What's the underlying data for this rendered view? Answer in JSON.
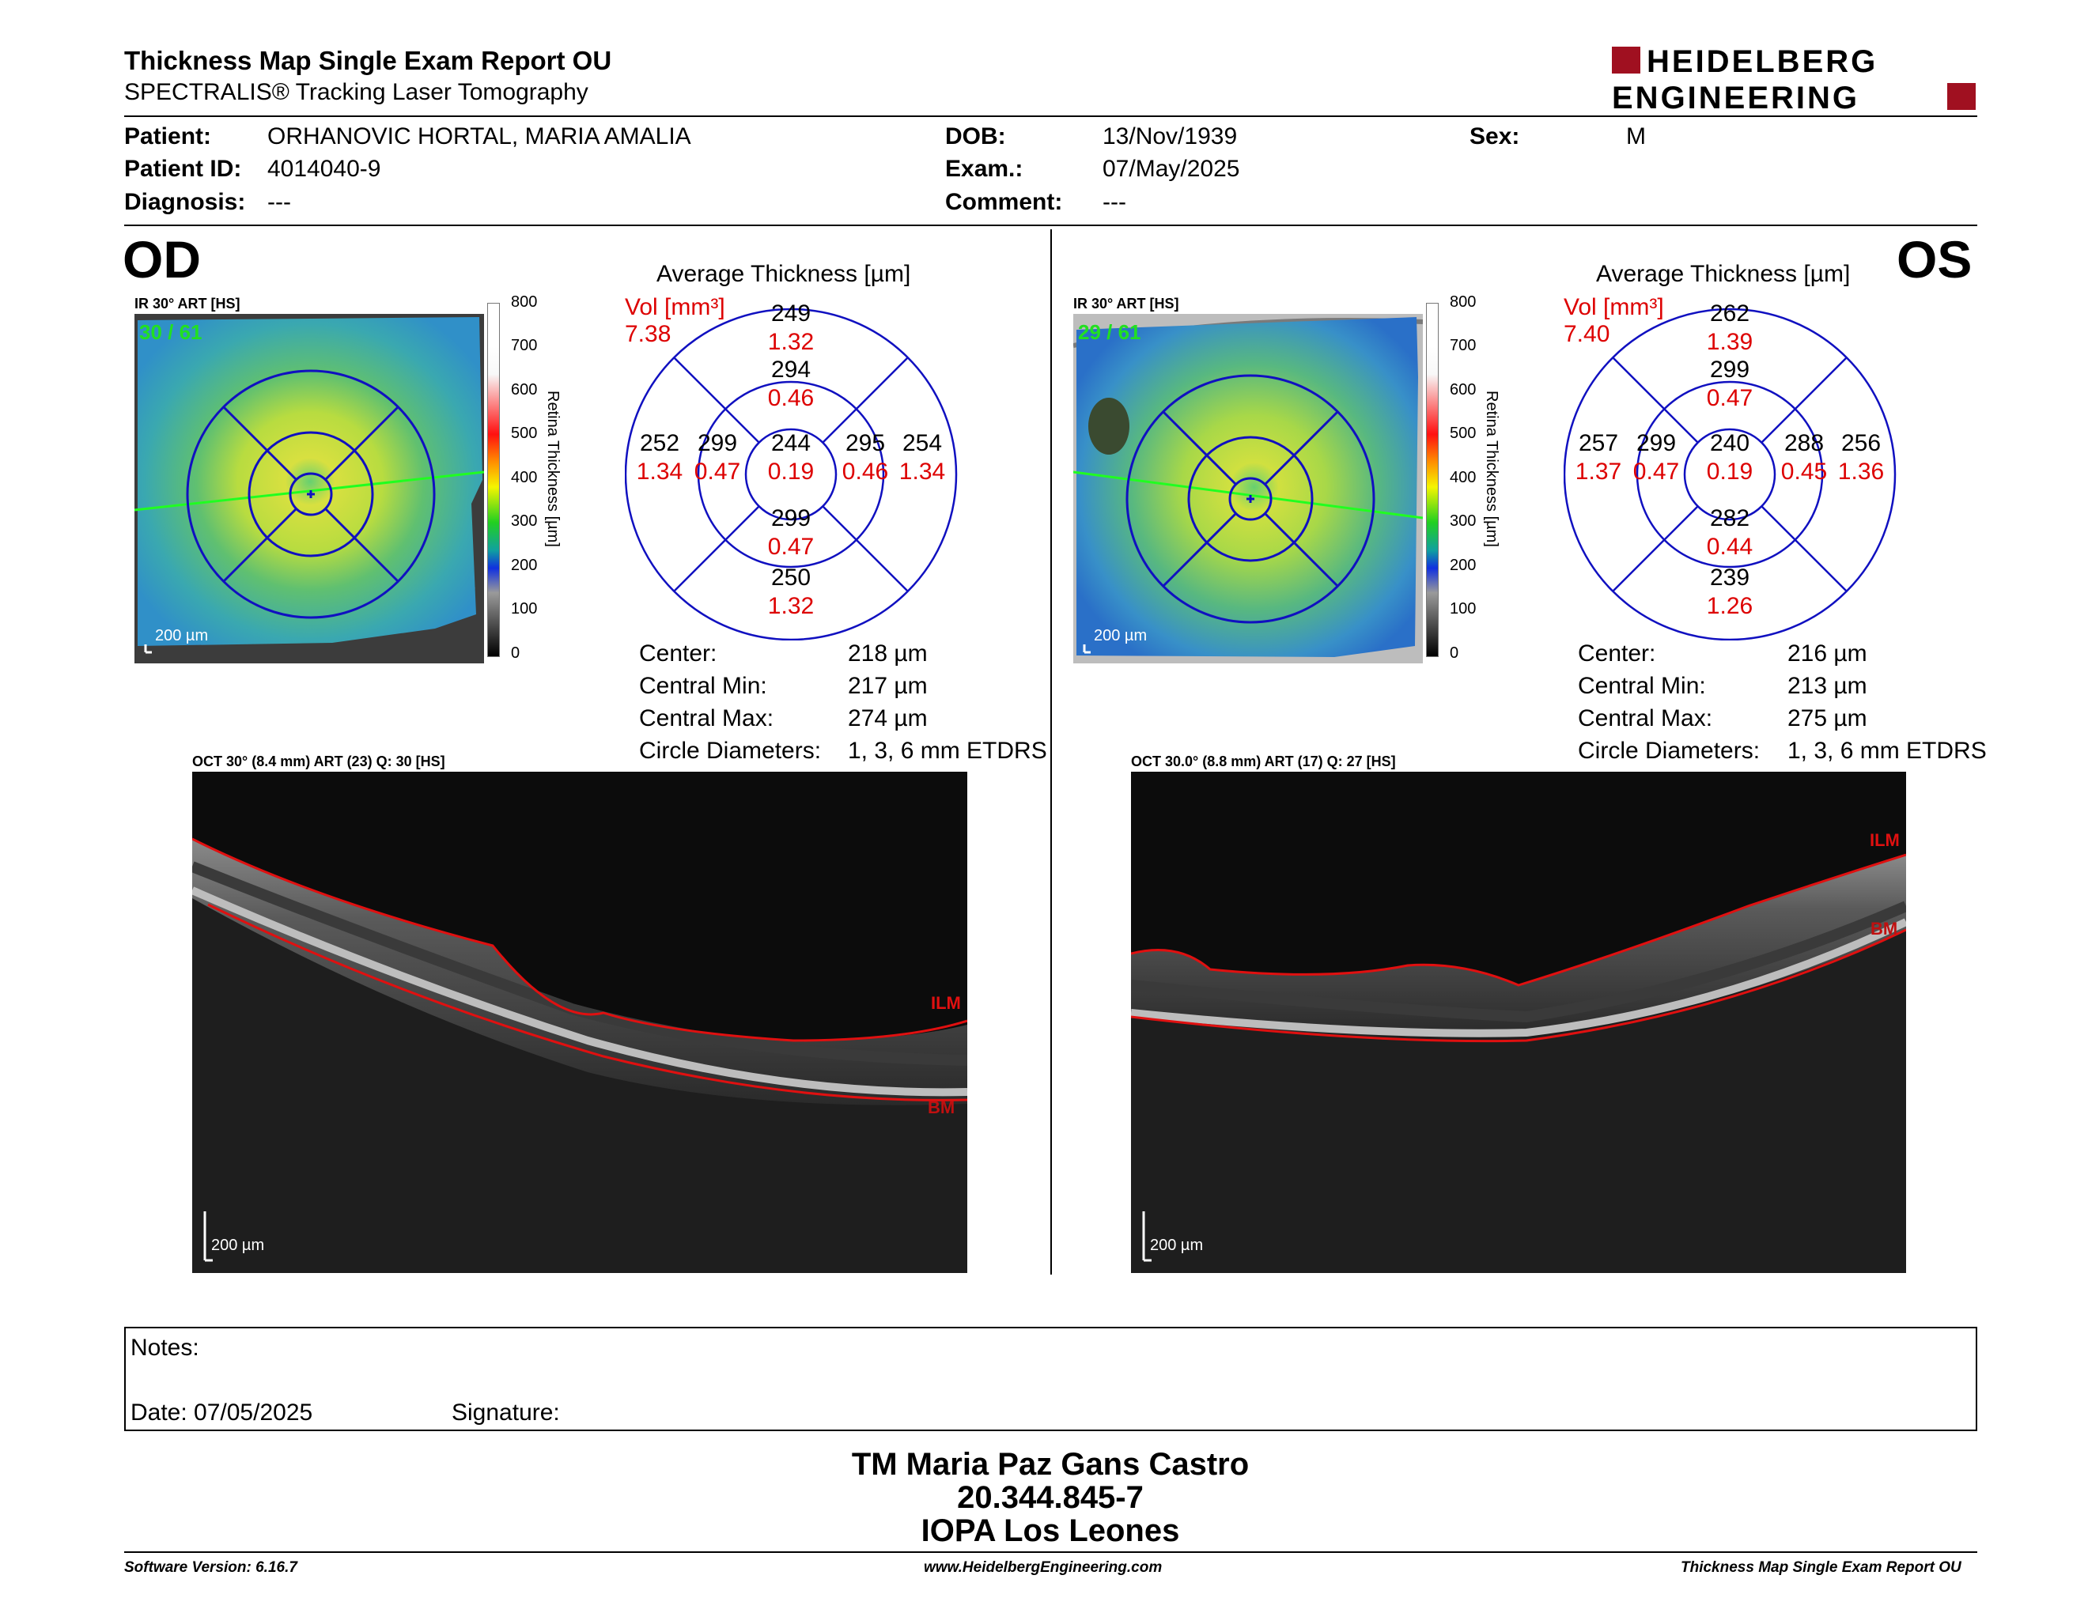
{
  "header": {
    "title": "Thickness Map Single Exam Report OU",
    "subtitle": "SPECTRALIS® Tracking Laser Tomography",
    "logo_line1": "HEIDELBERG",
    "logo_line2": "ENGINEERING"
  },
  "patient": {
    "patient_label": "Patient:",
    "patient_value": "ORHANOVIC HORTAL, MARIA AMALIA",
    "id_label": "Patient ID:",
    "id_value": "4014040-9",
    "diagnosis_label": "Diagnosis:",
    "diagnosis_value": "---",
    "dob_label": "DOB:",
    "dob_value": "13/Nov/1939",
    "exam_label": "Exam.:",
    "exam_value": "07/May/2025",
    "comment_label": "Comment:",
    "comment_value": "---",
    "sex_label": "Sex:",
    "sex_value": "M"
  },
  "colorbar": {
    "ticks": [
      "800",
      "700",
      "600",
      "500",
      "400",
      "300",
      "200",
      "100",
      "0"
    ],
    "label": "Retina  Thickness [µm]"
  },
  "od": {
    "eye": "OD",
    "ir_title": "IR 30° ART [HS]",
    "ir_count": "30 / 61",
    "ir_scale": "200 µm",
    "avg_title": "Average Thickness [µm]",
    "vol_label": "Vol [mm³]",
    "vol_total": "7.38",
    "etdrs": {
      "center": {
        "t": "244",
        "v": "0.19"
      },
      "inner_top": {
        "t": "294",
        "v": "0.46"
      },
      "inner_bottom": {
        "t": "299",
        "v": "0.47"
      },
      "inner_left": {
        "t": "299",
        "v": "0.47"
      },
      "inner_right": {
        "t": "295",
        "v": "0.46"
      },
      "outer_top": {
        "t": "249",
        "v": "1.32"
      },
      "outer_bottom": {
        "t": "250",
        "v": "1.32"
      },
      "outer_left": {
        "t": "252",
        "v": "1.34"
      },
      "outer_right": {
        "t": "254",
        "v": "1.34"
      }
    },
    "stats": {
      "center_label": "Center:",
      "center_value": "218 µm",
      "min_label": "Central Min:",
      "min_value": "217 µm",
      "max_label": "Central Max:",
      "max_value": "274 µm",
      "circ_label": "Circle Diameters:",
      "circ_value": "1, 3, 6 mm ETDRS"
    },
    "oct_title": "OCT 30° (8.4 mm) ART (23) Q: 30 [HS]",
    "oct_ilm": "ILM",
    "oct_bm": "BM",
    "oct_scale": "200 µm"
  },
  "os": {
    "eye": "OS",
    "ir_title": "IR 30° ART [HS]",
    "ir_count": "29 / 61",
    "ir_scale": "200 µm",
    "avg_title": "Average Thickness [µm]",
    "vol_label": "Vol [mm³]",
    "vol_total": "7.40",
    "etdrs": {
      "center": {
        "t": "240",
        "v": "0.19"
      },
      "inner_top": {
        "t": "299",
        "v": "0.47"
      },
      "inner_bottom": {
        "t": "282",
        "v": "0.44"
      },
      "inner_left": {
        "t": "299",
        "v": "0.47"
      },
      "inner_right": {
        "t": "288",
        "v": "0.45"
      },
      "outer_top": {
        "t": "262",
        "v": "1.39"
      },
      "outer_bottom": {
        "t": "239",
        "v": "1.26"
      },
      "outer_left": {
        "t": "257",
        "v": "1.37"
      },
      "outer_right": {
        "t": "256",
        "v": "1.36"
      }
    },
    "stats": {
      "center_label": "Center:",
      "center_value": "216 µm",
      "min_label": "Central Min:",
      "min_value": "213 µm",
      "max_label": "Central Max:",
      "max_value": "275 µm",
      "circ_label": "Circle Diameters:",
      "circ_value": "1, 3, 6 mm ETDRS"
    },
    "oct_title": "OCT 30.0° (8.8 mm) ART (17) Q: 27 [HS]",
    "oct_ilm": "ILM",
    "oct_bm": "BM",
    "oct_scale": "200 µm"
  },
  "notes": {
    "notes_label": "Notes:",
    "date_label": "Date: 07/05/2025",
    "signature_label": "Signature:"
  },
  "signature_block": {
    "line1": "TM Maria Paz Gans Castro",
    "line2": "20.344.845-7",
    "line3": "IOPA Los Leones"
  },
  "footer": {
    "left": "Software Version: 6.16.7",
    "center": "www.HeidelbergEngineering.com",
    "right": "Thickness Map Single Exam Report OU"
  },
  "colors": {
    "value_red": "#dd0000",
    "grid_blue": "#1010c0",
    "logo_red": "#a01020"
  }
}
